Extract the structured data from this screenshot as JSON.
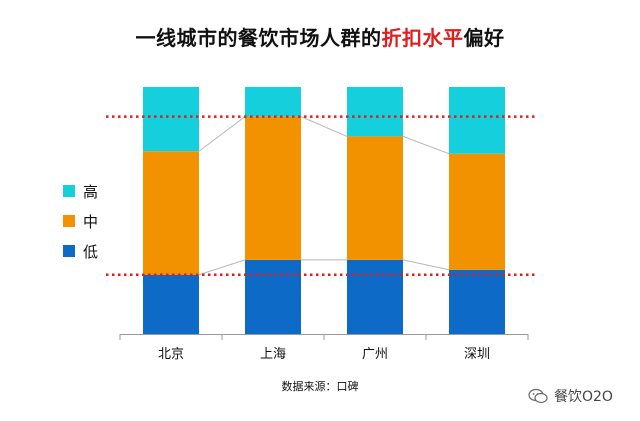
{
  "title": {
    "prefix": "一线城市的餐饮市场人群的",
    "highlight": "折扣水平",
    "suffix": "偏好"
  },
  "source": "数据来源：口碑",
  "watermark": {
    "text": "餐饮O2O",
    "icon": "wechat-icon"
  },
  "colors": {
    "high": "#16cfdc",
    "mid": "#f39200",
    "low": "#0e6ac7",
    "reference_line": "#e01e1e",
    "highlight_text": "#e01e1e"
  },
  "chart_data": {
    "type": "bar",
    "stacked": true,
    "normalized": true,
    "categories": [
      "北京",
      "上海",
      "广州",
      "深圳"
    ],
    "series": [
      {
        "name": "低",
        "values": [
          0.24,
          0.3,
          0.3,
          0.26
        ]
      },
      {
        "name": "中",
        "values": [
          0.5,
          0.58,
          0.5,
          0.47
        ]
      },
      {
        "name": "高",
        "values": [
          0.26,
          0.12,
          0.2,
          0.27
        ]
      }
    ],
    "reference_lines": [
      0.24,
      0.88
    ],
    "ylim": [
      0,
      1
    ],
    "legend": {
      "position": "left",
      "items": [
        "高",
        "中",
        "低"
      ]
    },
    "connector_lines": true,
    "grid": false
  }
}
